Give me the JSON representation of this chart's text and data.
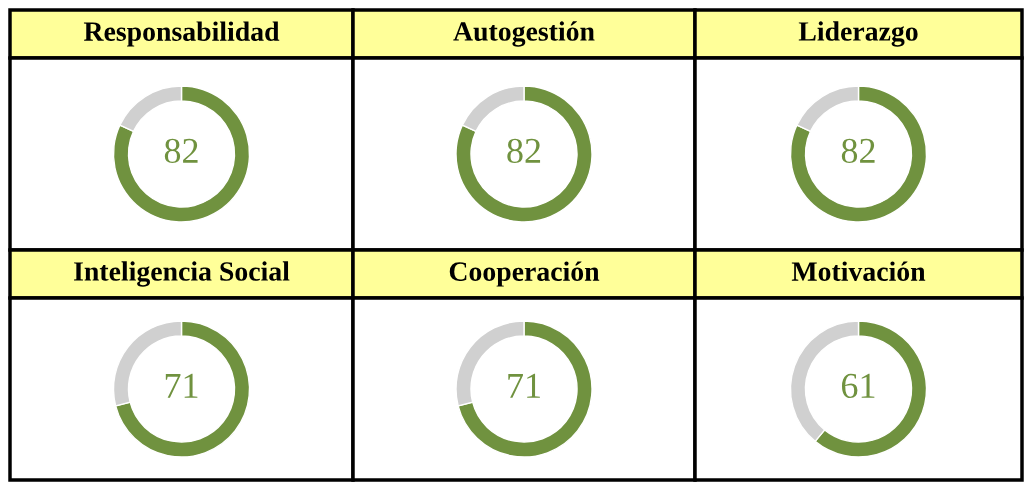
{
  "chart_data": [
    {
      "type": "donut",
      "title": "Responsabilidad",
      "categories": [
        null,
        null
      ],
      "values": [
        82,
        18
      ],
      "colors": [
        "#70923f",
        "#d0d0d0"
      ],
      "value_labels": [
        "82",
        null
      ]
    },
    {
      "type": "donut",
      "title": "Autogestión",
      "categories": [
        null,
        null
      ],
      "values": [
        82,
        18
      ],
      "colors": [
        "#70923f",
        "#d0d0d0"
      ],
      "value_labels": [
        "82",
        null
      ]
    },
    {
      "type": "donut",
      "title": "Liderazgo",
      "categories": [
        null,
        null
      ],
      "values": [
        82,
        18
      ],
      "colors": [
        "#70923f",
        "#d0d0d0"
      ],
      "value_labels": [
        "82",
        null
      ]
    },
    {
      "type": "donut",
      "title": "Inteligencia Social",
      "categories": [
        null,
        null
      ],
      "values": [
        71,
        29
      ],
      "colors": [
        "#70923f",
        "#d0d0d0"
      ],
      "value_labels": [
        "71",
        null
      ]
    },
    {
      "type": "donut",
      "title": "Cooperación",
      "categories": [
        null,
        null
      ],
      "values": [
        71,
        29
      ],
      "colors": [
        "#70923f",
        "#d0d0d0"
      ],
      "value_labels": [
        "71",
        null
      ]
    },
    {
      "type": "donut",
      "title": "Motivación",
      "categories": [
        null,
        null
      ],
      "values": [
        61,
        39
      ],
      "colors": [
        "#70923f",
        "#d0d0d0"
      ],
      "value_labels": [
        "61",
        null
      ]
    }
  ]
}
